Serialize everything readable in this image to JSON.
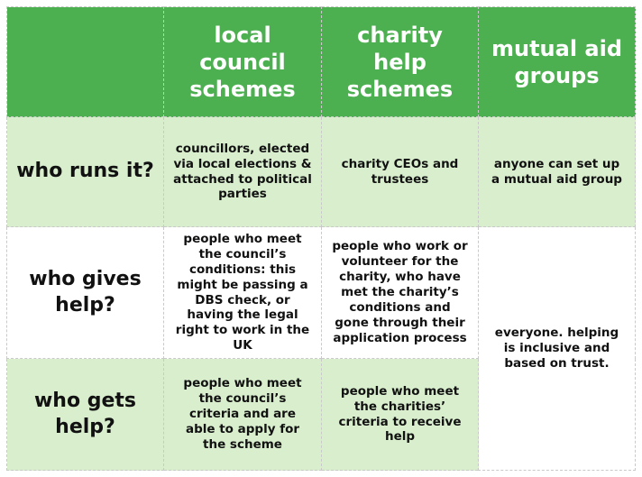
{
  "header": {
    "columns": [
      "local council schemes",
      "charity help schemes",
      "mutual aid groups"
    ]
  },
  "rows": [
    {
      "label": "who runs it?",
      "cells": [
        "councillors, elected via local elections & attached to political parties",
        "charity CEOs and trustees",
        "anyone can set up a mutual aid group"
      ]
    },
    {
      "label": "who gives help?",
      "cells": [
        "people who meet the council’s conditions: this might be passing a DBS check, or having the legal right to work in the UK",
        "people who work or volunteer for the charity, who have met the charity’s conditions and gone through their application process"
      ]
    },
    {
      "label": "who gets help?",
      "cells": [
        "people who meet the council’s criteria and are able to apply for the scheme",
        "people who meet the charities’ criteria to receive help"
      ]
    }
  ],
  "merged_cell": "everyone. helping is inclusive and based on trust.",
  "colors": {
    "header_green": "#4caf50",
    "light_green": "#d8eecd",
    "white": "#ffffff"
  }
}
